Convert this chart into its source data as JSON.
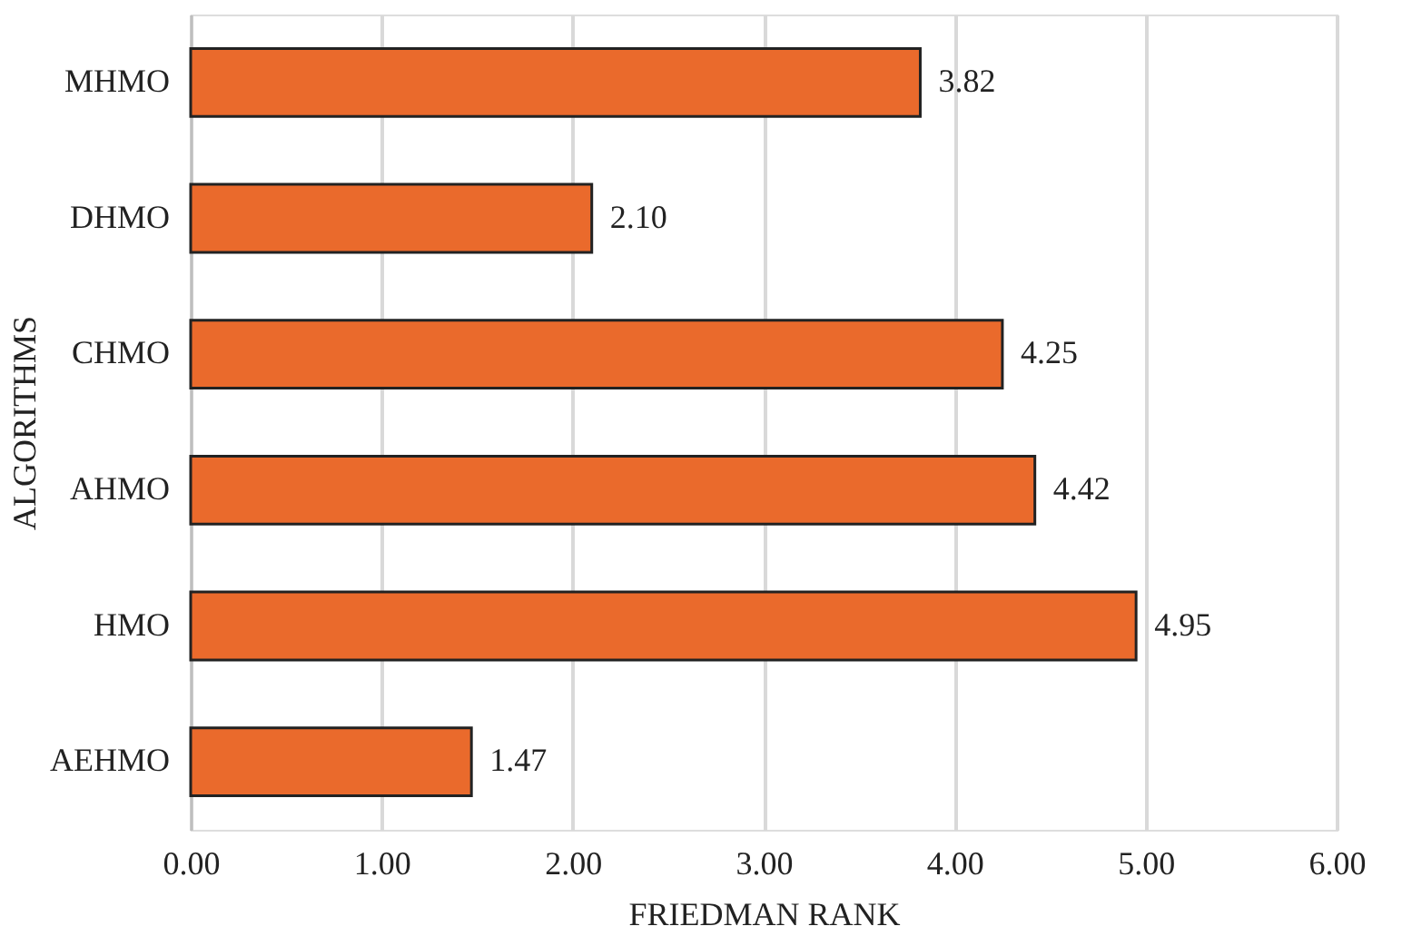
{
  "chart_data": {
    "type": "bar",
    "orientation": "horizontal",
    "xlabel": "FRIEDMAN RANK",
    "ylabel": "ALGORITHMS",
    "categories": [
      "MHMO",
      "DHMO",
      "CHMO",
      "AHMO",
      "HMO",
      "AEHMO"
    ],
    "values": [
      3.82,
      2.1,
      4.25,
      4.42,
      4.95,
      1.47
    ],
    "value_labels": [
      "3.82",
      "2.10",
      "4.25",
      "4.42",
      "4.95",
      "1.47"
    ],
    "color": "#ea6a2c",
    "xlim": [
      0,
      6
    ],
    "xticks": [
      {
        "value": 0,
        "label": "0.00"
      },
      {
        "value": 1,
        "label": "1.00"
      },
      {
        "value": 2,
        "label": "2.00"
      },
      {
        "value": 3,
        "label": "3.00"
      },
      {
        "value": 4,
        "label": "4.00"
      },
      {
        "value": 5,
        "label": "5.00"
      },
      {
        "value": 6,
        "label": "6.00"
      }
    ],
    "grid": "x"
  }
}
